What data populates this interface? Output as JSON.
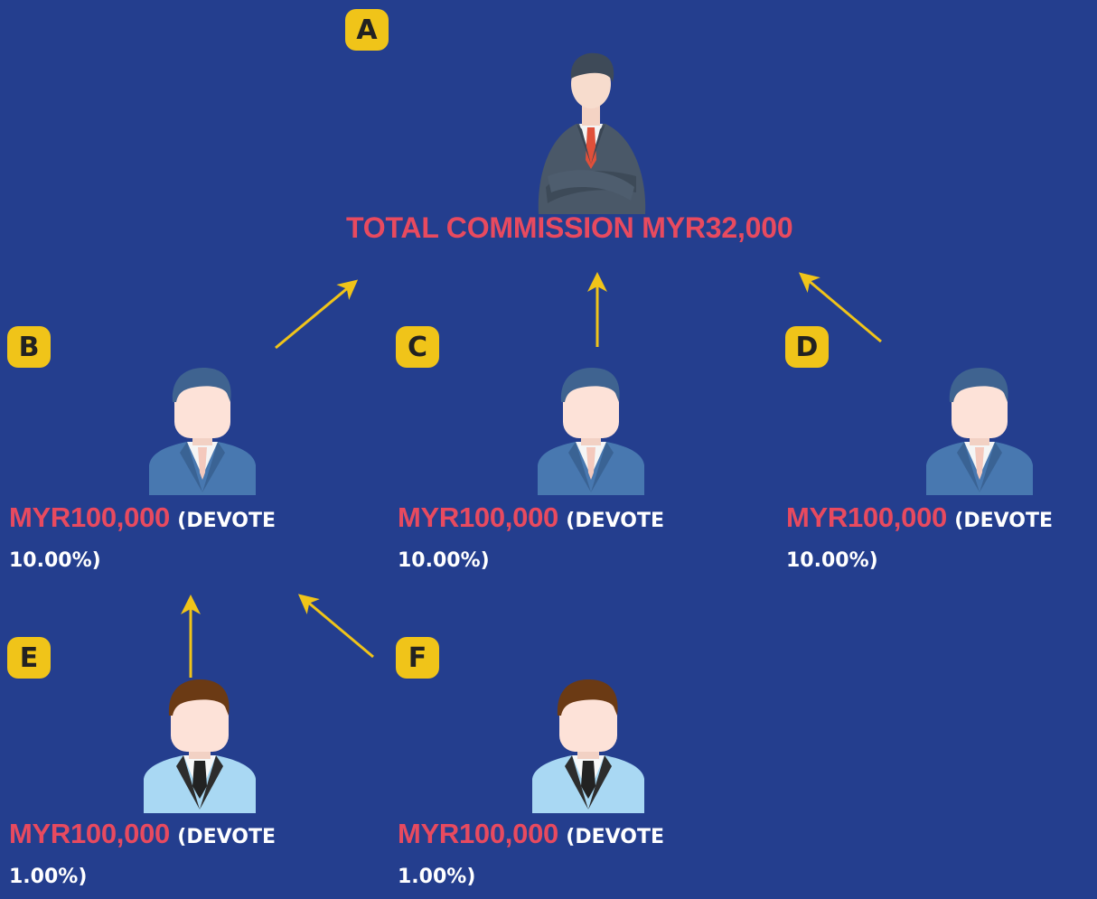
{
  "nodes": {
    "a": {
      "badge": "A"
    },
    "b": {
      "badge": "B",
      "amount": "MYR100,000",
      "devote": "(DEVOTE",
      "percent": "10.00%)"
    },
    "c": {
      "badge": "C",
      "amount": "MYR100,000",
      "devote": "(DEVOTE",
      "percent": "10.00%)"
    },
    "d": {
      "badge": "D",
      "amount": "MYR100,000",
      "devote": "(DEVOTE",
      "percent": "10.00%)"
    },
    "e": {
      "badge": "E",
      "amount": "MYR100,000",
      "devote": "(DEVOTE",
      "percent": "1.00%)"
    },
    "f": {
      "badge": "F",
      "amount": "MYR100,000",
      "devote": "(DEVOTE",
      "percent": "1.00%)"
    }
  },
  "total_commission": "TOTAL COMMISSION MYR32,000",
  "edges": [
    {
      "from": "B",
      "to": "A"
    },
    {
      "from": "C",
      "to": "A"
    },
    {
      "from": "D",
      "to": "A"
    },
    {
      "from": "E",
      "to": "B"
    },
    {
      "from": "F",
      "to": "B"
    }
  ],
  "colors": {
    "background": "#243e8e",
    "badge": "#f0c419",
    "amount_text": "#e84a5f",
    "arrow": "#f0c419"
  },
  "icons": {
    "top": "businessman-crossed-arms-icon",
    "level1": "person-blue-suit-icon",
    "level2": "person-light-blue-suit-icon"
  }
}
